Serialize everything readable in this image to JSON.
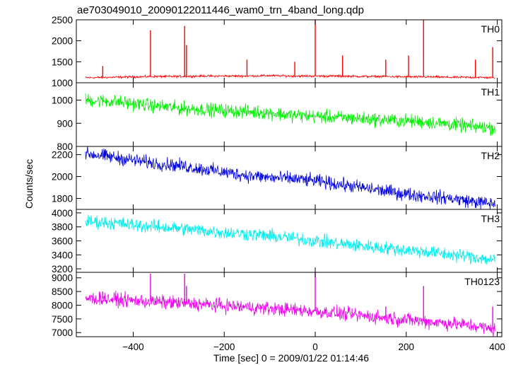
{
  "chart_data": {
    "type": "line",
    "title": "ae703049010_20090122011446_wam0_trn_4band_long.qdp",
    "xlabel": "Time [sec] 0 = 2009/01/22 01:14:46",
    "ylabel": "Counts/sec",
    "xlim": [
      -525,
      410
    ],
    "xticks": [
      -400,
      -200,
      0,
      200,
      400
    ],
    "grid": false,
    "legend": "none",
    "panels": [
      {
        "name": "TH0",
        "color": "#ff0000",
        "ylim": [
          1000,
          2500
        ],
        "yticks": [
          1000,
          1500,
          2000,
          2500
        ],
        "x": [
          -505,
          -450,
          -400,
          -350,
          -300,
          -250,
          -200,
          -150,
          -100,
          -50,
          0,
          50,
          100,
          150,
          200,
          250,
          300,
          350,
          395
        ],
        "y": [
          1120,
          1130,
          1140,
          1150,
          1150,
          1160,
          1160,
          1160,
          1170,
          1160,
          1160,
          1160,
          1150,
          1150,
          1140,
          1140,
          1130,
          1130,
          1120
        ],
        "spikes": [
          {
            "x": -467,
            "y": 1400
          },
          {
            "x": -362,
            "y": 2250
          },
          {
            "x": -287,
            "y": 2350
          },
          {
            "x": -283,
            "y": 1900
          },
          {
            "x": -150,
            "y": 1550
          },
          {
            "x": -45,
            "y": 1500
          },
          {
            "x": 0,
            "y": 2500
          },
          {
            "x": 60,
            "y": 1650
          },
          {
            "x": 155,
            "y": 1550
          },
          {
            "x": 205,
            "y": 1650
          },
          {
            "x": 238,
            "y": 2500
          },
          {
            "x": 352,
            "y": 1550
          },
          {
            "x": 390,
            "y": 1850
          }
        ]
      },
      {
        "name": "TH1",
        "color": "#00ee00",
        "ylim": [
          800,
          1075
        ],
        "yticks": [
          800,
          900,
          1000
        ],
        "x": [
          -505,
          -450,
          -400,
          -350,
          -300,
          -250,
          -200,
          -150,
          -100,
          -50,
          0,
          50,
          100,
          150,
          200,
          250,
          300,
          350,
          395
        ],
        "y": [
          1000,
          995,
          985,
          975,
          965,
          960,
          955,
          950,
          945,
          935,
          930,
          925,
          920,
          915,
          910,
          905,
          895,
          885,
          880
        ],
        "spikes": []
      },
      {
        "name": "TH2",
        "color": "#0000dd",
        "ylim": [
          1700,
          2275
        ],
        "yticks": [
          1800,
          2000,
          2200
        ],
        "x": [
          -505,
          -450,
          -400,
          -350,
          -300,
          -250,
          -200,
          -150,
          -100,
          -50,
          0,
          50,
          100,
          150,
          200,
          250,
          300,
          350,
          395
        ],
        "y": [
          2210,
          2180,
          2150,
          2120,
          2100,
          2070,
          2040,
          2010,
          1990,
          1980,
          1960,
          1930,
          1900,
          1870,
          1840,
          1820,
          1800,
          1770,
          1750
        ],
        "spikes": []
      },
      {
        "name": "TH3",
        "color": "#00eeee",
        "ylim": [
          3150,
          4050
        ],
        "yticks": [
          3200,
          3400,
          3600,
          3800,
          4000
        ],
        "x": [
          -505,
          -450,
          -400,
          -350,
          -300,
          -250,
          -200,
          -150,
          -100,
          -50,
          0,
          50,
          100,
          150,
          200,
          250,
          300,
          350,
          395
        ],
        "y": [
          3880,
          3860,
          3830,
          3800,
          3780,
          3750,
          3720,
          3700,
          3670,
          3640,
          3600,
          3560,
          3530,
          3500,
          3470,
          3440,
          3400,
          3370,
          3320
        ],
        "spikes": []
      },
      {
        "name": "TH0123",
        "color": "#ee00ee",
        "ylim": [
          6850,
          9200
        ],
        "yticks": [
          7000,
          7500,
          8000,
          8500,
          9000
        ],
        "x": [
          -505,
          -450,
          -400,
          -350,
          -300,
          -250,
          -200,
          -150,
          -100,
          -50,
          0,
          50,
          100,
          150,
          200,
          250,
          300,
          350,
          395
        ],
        "y": [
          8250,
          8220,
          8170,
          8120,
          8080,
          8030,
          7980,
          7930,
          7880,
          7830,
          7780,
          7700,
          7620,
          7550,
          7470,
          7400,
          7330,
          7250,
          7100
        ],
        "spikes": [
          {
            "x": -467,
            "y": 8500
          },
          {
            "x": -362,
            "y": 9150
          },
          {
            "x": -287,
            "y": 9150
          },
          {
            "x": -283,
            "y": 8700
          },
          {
            "x": 0,
            "y": 9200
          },
          {
            "x": 155,
            "y": 7950
          },
          {
            "x": 238,
            "y": 8700
          },
          {
            "x": 390,
            "y": 7950
          }
        ]
      }
    ]
  }
}
